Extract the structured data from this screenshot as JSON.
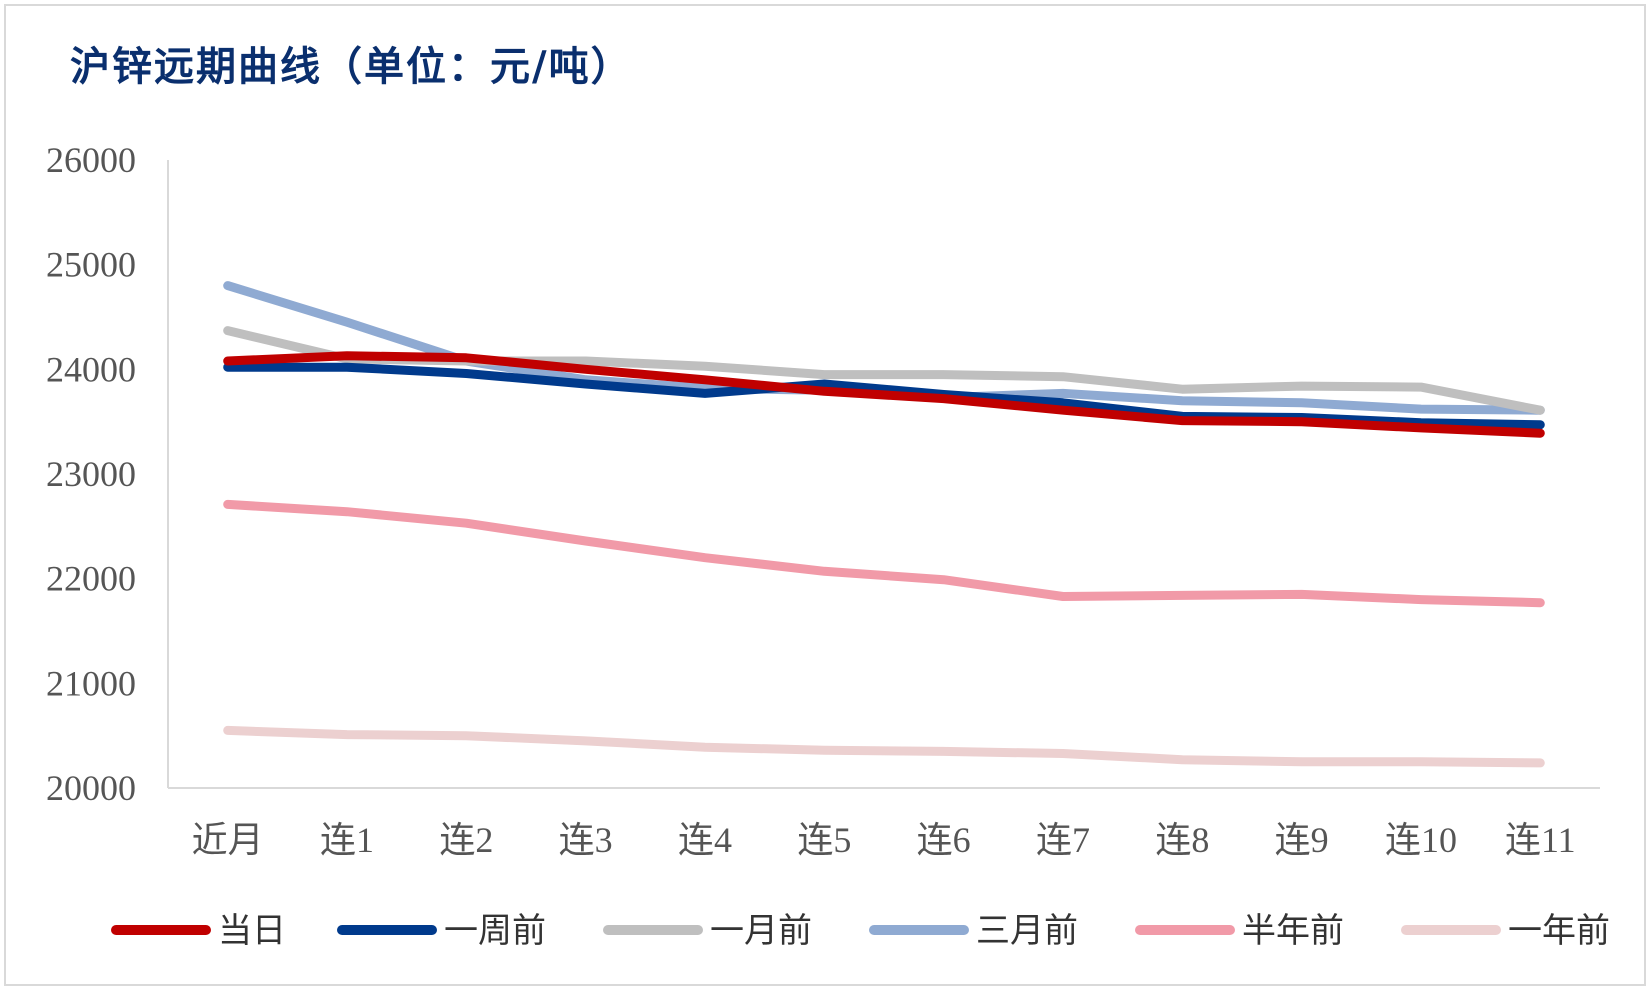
{
  "chart_data": {
    "type": "line",
    "title": "沪锌远期曲线（单位：元/吨）",
    "xlabel": "",
    "ylabel": "",
    "categories": [
      "近月",
      "连1",
      "连2",
      "连3",
      "连4",
      "连5",
      "连6",
      "连7",
      "连8",
      "连9",
      "连10",
      "连11"
    ],
    "ylim": [
      20000,
      26000
    ],
    "yticks": [
      "26000",
      "25000",
      "24000",
      "23000",
      "22000",
      "21000",
      "20000"
    ],
    "grid": false,
    "legend_position": "bottom",
    "series": [
      {
        "name": "当日",
        "color": "#c00000",
        "values": [
          24080,
          24130,
          24110,
          24000,
          23900,
          23790,
          23720,
          23610,
          23510,
          23500,
          23440,
          23390
        ]
      },
      {
        "name": "一周前",
        "color": "#003a8c",
        "values": [
          24020,
          24020,
          23960,
          23860,
          23770,
          23860,
          23760,
          23680,
          23550,
          23540,
          23490,
          23470
        ]
      },
      {
        "name": "一月前",
        "color": "#bfbfbf",
        "values": [
          24370,
          24100,
          24080,
          24080,
          24030,
          23950,
          23950,
          23930,
          23810,
          23840,
          23830,
          23610
        ]
      },
      {
        "name": "三月前",
        "color": "#8faad2",
        "values": [
          24800,
          24450,
          24080,
          23900,
          23820,
          23800,
          23730,
          23770,
          23700,
          23680,
          23620,
          23610
        ]
      },
      {
        "name": "半年前",
        "color": "#f19aa8",
        "values": [
          22710,
          22640,
          22530,
          22360,
          22200,
          22070,
          21990,
          21830,
          21840,
          21850,
          21800,
          21770
        ]
      },
      {
        "name": "一年前",
        "color": "#ecd0d0",
        "values": [
          20550,
          20510,
          20500,
          20450,
          20390,
          20360,
          20350,
          20330,
          20270,
          20250,
          20250,
          20240
        ]
      }
    ]
  }
}
